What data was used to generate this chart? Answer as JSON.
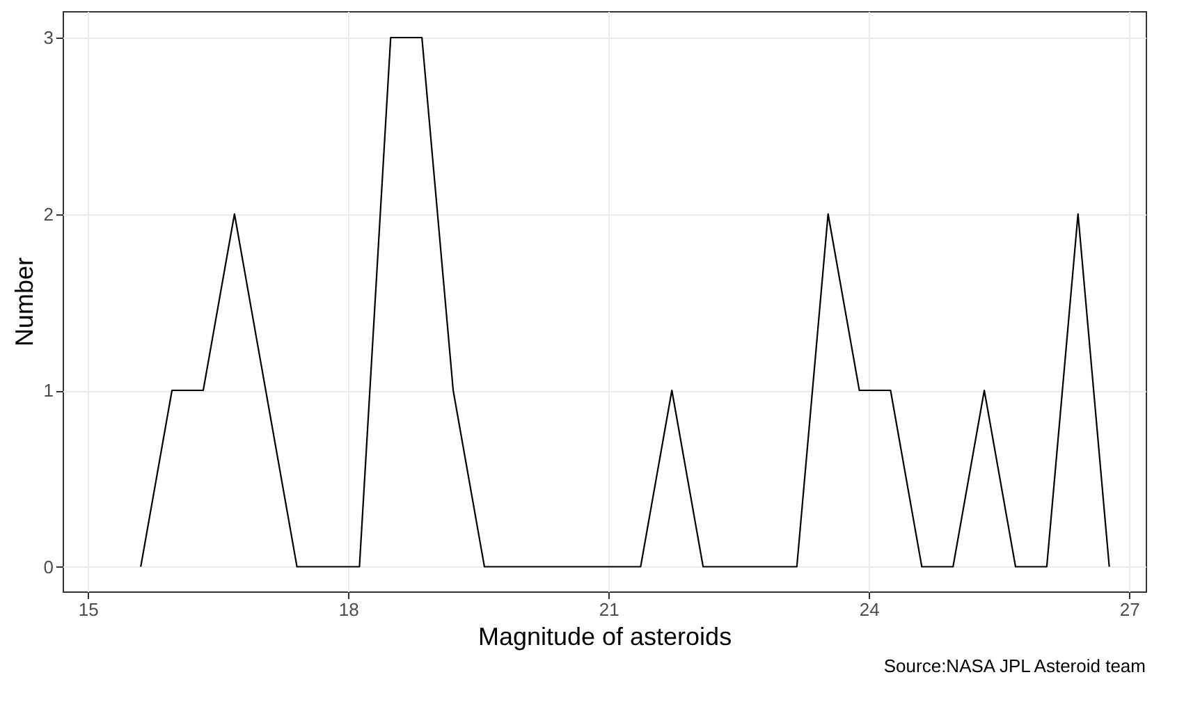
{
  "chart_data": {
    "type": "line",
    "xlabel": "Magnitude of asteroids",
    "ylabel": "Number",
    "x": [
      15.61,
      15.97,
      16.33,
      16.69,
      17.05,
      17.41,
      17.77,
      18.13,
      18.49,
      18.85,
      19.21,
      19.57,
      19.93,
      20.29,
      20.65,
      21.01,
      21.37,
      21.73,
      22.09,
      22.45,
      22.81,
      23.17,
      23.53,
      23.89,
      24.25,
      24.61,
      24.97,
      25.33,
      25.69,
      26.05,
      26.41,
      26.77
    ],
    "series": [
      {
        "color": "#000000",
        "values": [
          0,
          1,
          1,
          2,
          1,
          0,
          0,
          0,
          3,
          3,
          1,
          0,
          0,
          0,
          0,
          0,
          0,
          1,
          0,
          0,
          0,
          0,
          2,
          1,
          1,
          0,
          0,
          1,
          0,
          0,
          2,
          0
        ]
      }
    ],
    "xlim": [
      14.71,
      27.19
    ],
    "xticks": [
      15,
      18,
      21,
      24,
      27
    ],
    "ylim": [
      -0.14,
      3.15
    ],
    "yticks": [
      0,
      1,
      2,
      3
    ],
    "grid": true,
    "marker": "none",
    "line_style": "solid",
    "annotations": [
      "Source:NASA JPL Asteroid team"
    ]
  }
}
